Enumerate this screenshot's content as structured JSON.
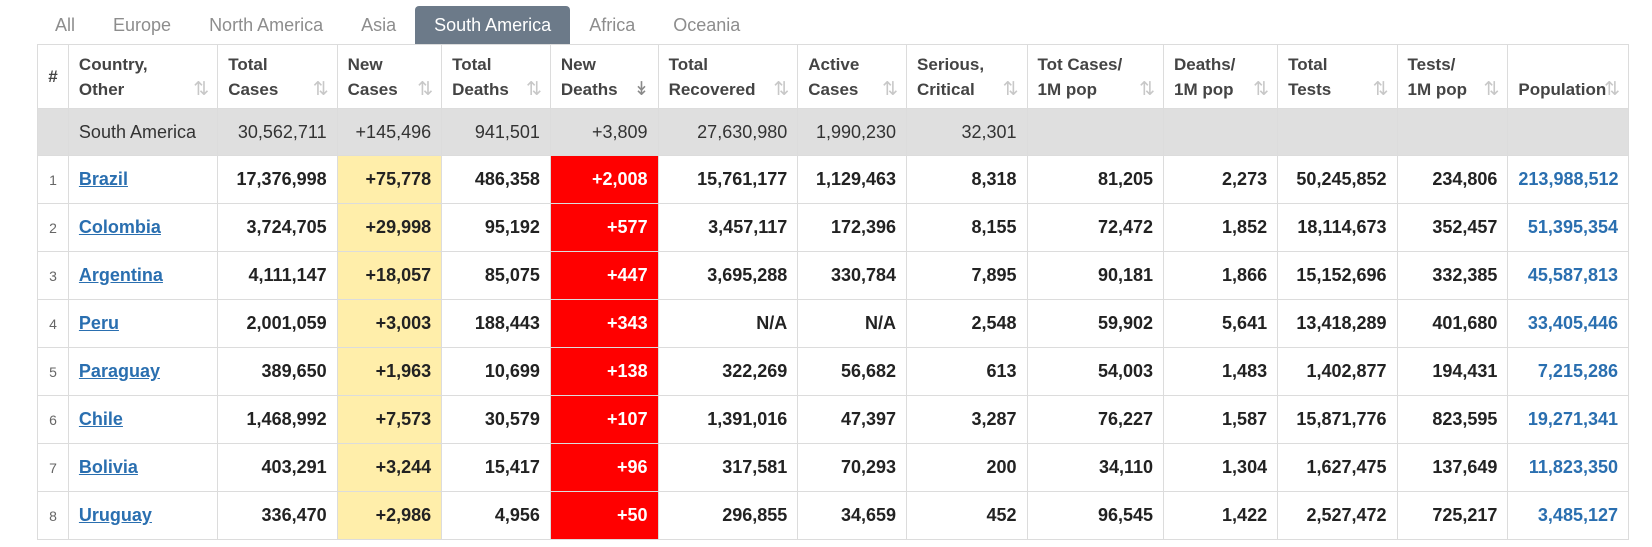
{
  "tabs": [
    "All",
    "Europe",
    "North America",
    "Asia",
    "South America",
    "Africa",
    "Oceania"
  ],
  "active_tab": "South America",
  "colors": {
    "active_tab_bg": "#6c7a89",
    "new_cases_bg": "#ffeeaa",
    "new_deaths_bg": "#ff0000",
    "total_row_bg": "#dfdfdf",
    "link": "#2a6fb0"
  },
  "columns": [
    {
      "line1": "#",
      "line2": ""
    },
    {
      "line1": "Country,",
      "line2": "Other"
    },
    {
      "line1": "Total",
      "line2": "Cases"
    },
    {
      "line1": "New",
      "line2": "Cases"
    },
    {
      "line1": "Total",
      "line2": "Deaths"
    },
    {
      "line1": "New",
      "line2": "Deaths"
    },
    {
      "line1": "Total",
      "line2": "Recovered"
    },
    {
      "line1": "Active",
      "line2": "Cases"
    },
    {
      "line1": "Serious,",
      "line2": "Critical"
    },
    {
      "line1": "Tot Cases/",
      "line2": "1M pop"
    },
    {
      "line1": "Deaths/",
      "line2": "1M pop"
    },
    {
      "line1": "Total",
      "line2": "Tests"
    },
    {
      "line1": "Tests/",
      "line2": "1M pop"
    },
    {
      "line1": "Population",
      "line2": ""
    }
  ],
  "sorted_column": "New Deaths",
  "sort_icon": "sort-arrows-icon",
  "total_row": {
    "name": "South America",
    "total_cases": "30,562,711",
    "new_cases": "+145,496",
    "total_deaths": "941,501",
    "new_deaths": "+3,809",
    "total_recovered": "27,630,980",
    "active_cases": "1,990,230",
    "serious": "32,301",
    "cases_per_1m": "",
    "deaths_per_1m": "",
    "total_tests": "",
    "tests_per_1m": "",
    "population": ""
  },
  "rows": [
    {
      "rank": "1",
      "country": "Brazil",
      "total_cases": "17,376,998",
      "new_cases": "+75,778",
      "total_deaths": "486,358",
      "new_deaths": "+2,008",
      "total_recovered": "15,761,177",
      "active_cases": "1,129,463",
      "serious": "8,318",
      "cases_per_1m": "81,205",
      "deaths_per_1m": "2,273",
      "total_tests": "50,245,852",
      "tests_per_1m": "234,806",
      "population": "213,988,512"
    },
    {
      "rank": "2",
      "country": "Colombia",
      "total_cases": "3,724,705",
      "new_cases": "+29,998",
      "total_deaths": "95,192",
      "new_deaths": "+577",
      "total_recovered": "3,457,117",
      "active_cases": "172,396",
      "serious": "8,155",
      "cases_per_1m": "72,472",
      "deaths_per_1m": "1,852",
      "total_tests": "18,114,673",
      "tests_per_1m": "352,457",
      "population": "51,395,354"
    },
    {
      "rank": "3",
      "country": "Argentina",
      "total_cases": "4,111,147",
      "new_cases": "+18,057",
      "total_deaths": "85,075",
      "new_deaths": "+447",
      "total_recovered": "3,695,288",
      "active_cases": "330,784",
      "serious": "7,895",
      "cases_per_1m": "90,181",
      "deaths_per_1m": "1,866",
      "total_tests": "15,152,696",
      "tests_per_1m": "332,385",
      "population": "45,587,813"
    },
    {
      "rank": "4",
      "country": "Peru",
      "total_cases": "2,001,059",
      "new_cases": "+3,003",
      "total_deaths": "188,443",
      "new_deaths": "+343",
      "total_recovered": "N/A",
      "active_cases": "N/A",
      "serious": "2,548",
      "cases_per_1m": "59,902",
      "deaths_per_1m": "5,641",
      "total_tests": "13,418,289",
      "tests_per_1m": "401,680",
      "population": "33,405,446"
    },
    {
      "rank": "5",
      "country": "Paraguay",
      "total_cases": "389,650",
      "new_cases": "+1,963",
      "total_deaths": "10,699",
      "new_deaths": "+138",
      "total_recovered": "322,269",
      "active_cases": "56,682",
      "serious": "613",
      "cases_per_1m": "54,003",
      "deaths_per_1m": "1,483",
      "total_tests": "1,402,877",
      "tests_per_1m": "194,431",
      "population": "7,215,286"
    },
    {
      "rank": "6",
      "country": "Chile",
      "total_cases": "1,468,992",
      "new_cases": "+7,573",
      "total_deaths": "30,579",
      "new_deaths": "+107",
      "total_recovered": "1,391,016",
      "active_cases": "47,397",
      "serious": "3,287",
      "cases_per_1m": "76,227",
      "deaths_per_1m": "1,587",
      "total_tests": "15,871,776",
      "tests_per_1m": "823,595",
      "population": "19,271,341"
    },
    {
      "rank": "7",
      "country": "Bolivia",
      "total_cases": "403,291",
      "new_cases": "+3,244",
      "total_deaths": "15,417",
      "new_deaths": "+96",
      "total_recovered": "317,581",
      "active_cases": "70,293",
      "serious": "200",
      "cases_per_1m": "34,110",
      "deaths_per_1m": "1,304",
      "total_tests": "1,627,475",
      "tests_per_1m": "137,649",
      "population": "11,823,350"
    },
    {
      "rank": "8",
      "country": "Uruguay",
      "total_cases": "336,470",
      "new_cases": "+2,986",
      "total_deaths": "4,956",
      "new_deaths": "+50",
      "total_recovered": "296,855",
      "active_cases": "34,659",
      "serious": "452",
      "cases_per_1m": "96,545",
      "deaths_per_1m": "1,422",
      "total_tests": "2,527,472",
      "tests_per_1m": "725,217",
      "population": "3,485,127"
    }
  ]
}
